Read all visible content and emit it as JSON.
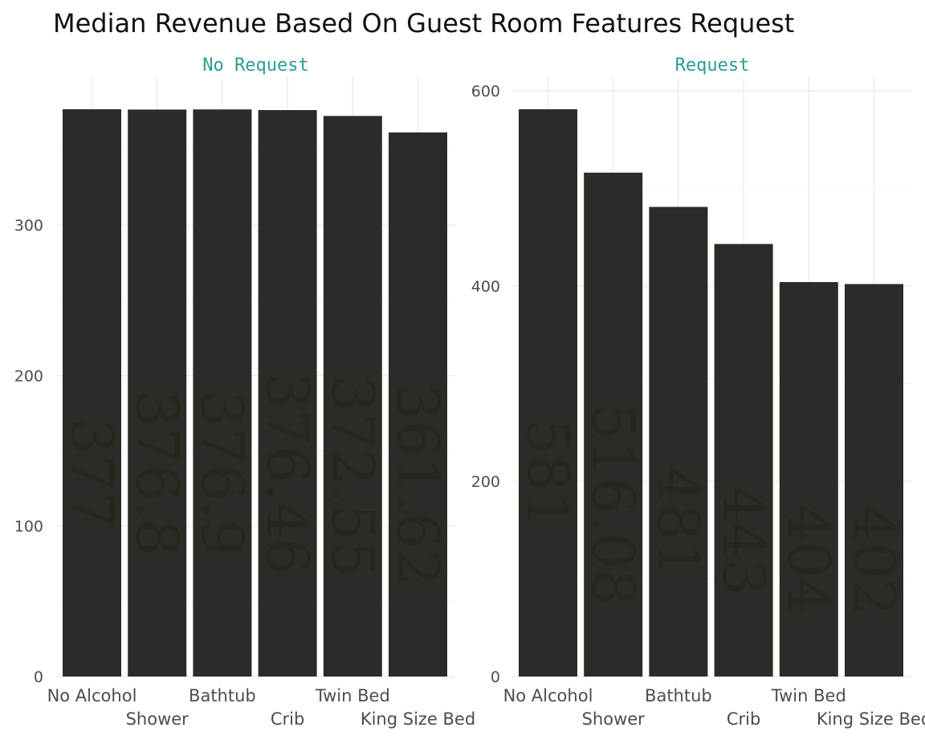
{
  "title": "Median Revenue Based On Guest Room Features Request",
  "chart_data": [
    {
      "type": "bar",
      "panel": "No Request",
      "categories": [
        "No Alcohol",
        "Shower",
        "Bathtub",
        "Crib",
        "Twin Bed",
        "King Size Bed"
      ],
      "values": [
        377,
        376.8,
        376.9,
        376.46,
        372.55,
        361.62
      ],
      "value_labels": [
        "377",
        "376.8",
        "376.9",
        "376.46",
        "372.55",
        "361.62"
      ],
      "ylim": [
        0,
        377
      ],
      "yticks": [
        0,
        100,
        200,
        300
      ],
      "ytick_labels": [
        "0",
        "100",
        "200",
        "300"
      ],
      "grid": true,
      "bar_color": "#2b2b27"
    },
    {
      "type": "bar",
      "panel": "Request",
      "categories": [
        "No Alcohol",
        "Shower",
        "Bathtub",
        "Crib",
        "Twin Bed",
        "King Size Bed"
      ],
      "values": [
        581,
        516.08,
        481,
        443,
        404,
        402
      ],
      "value_labels": [
        "581",
        "516.08",
        "481",
        "443",
        "404",
        "402"
      ],
      "ylim": [
        0,
        581
      ],
      "yticks": [
        0,
        200,
        400,
        600
      ],
      "ytick_labels": [
        "0",
        "200",
        "400",
        "600"
      ],
      "grid": true,
      "bar_color": "#2b2b27"
    }
  ],
  "colors": {
    "strip_text": "#2a9d8f",
    "bar": "#2b2b27",
    "grid": "#ebebeb"
  }
}
